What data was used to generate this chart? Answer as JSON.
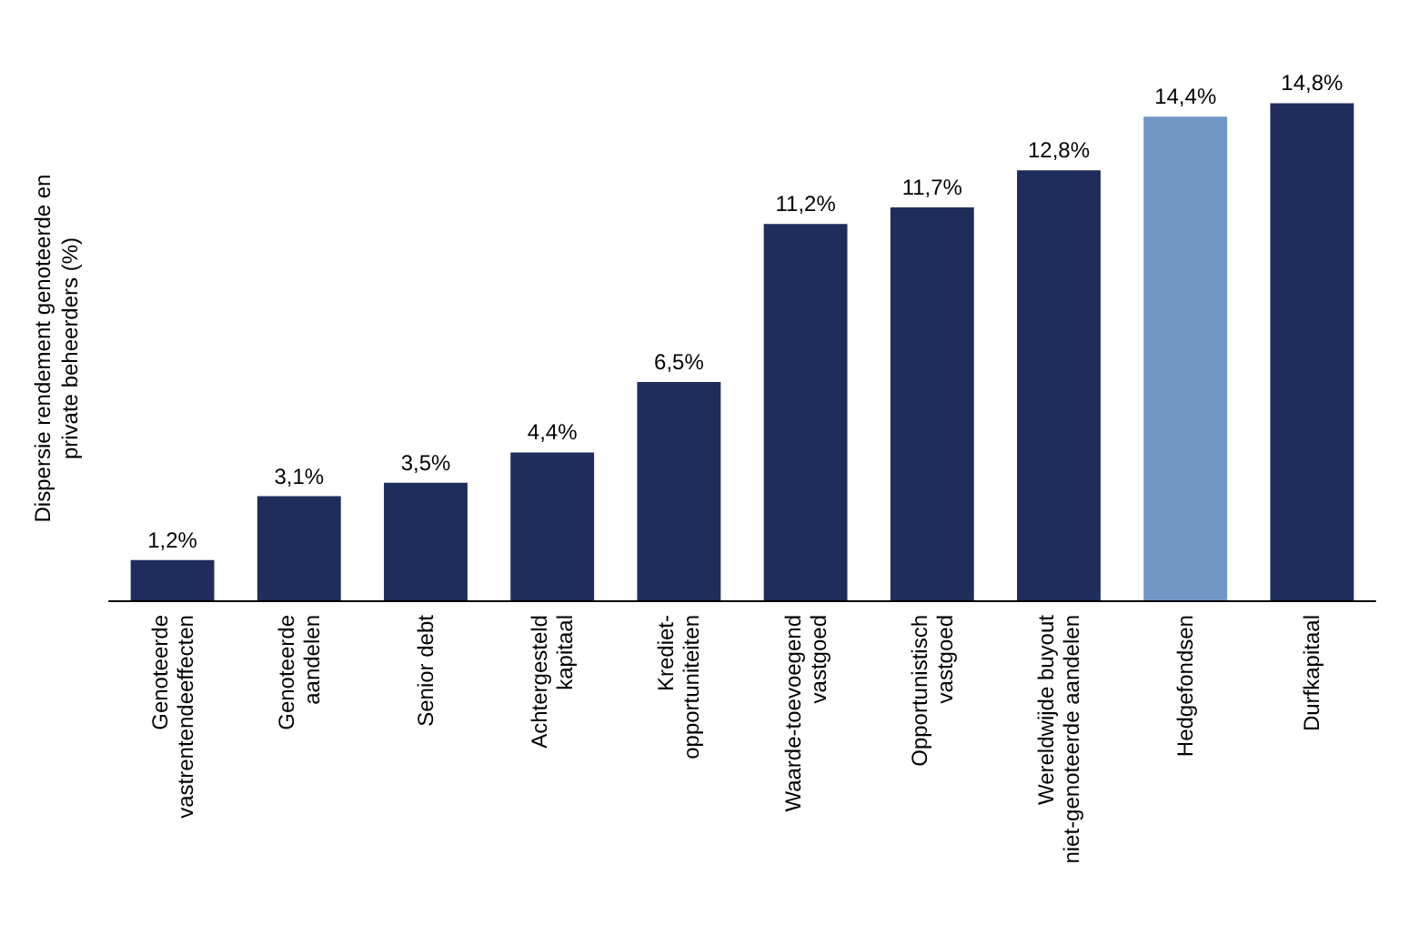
{
  "chart_data": {
    "type": "bar",
    "ylabel": "Dispersie rendement genoteerde en\nprivate beheerders (%)",
    "categories": [
      "Genoteerde\nvastrentendeeffecten",
      "Genoteerde\naandelen",
      "Senior debt",
      "Achtergesteld\nkapitaal",
      "Krediet-\nopportuniteiten",
      "Waarde-toevoegend\nvastgoed",
      "Opportunistisch\nvastgoed",
      "Wereldwijde buyout\nniet-genoteerde aandelen",
      "Hedgefondsen",
      "Durfkapitaal"
    ],
    "values": [
      1.2,
      3.1,
      3.5,
      4.4,
      6.5,
      11.2,
      11.7,
      12.8,
      14.4,
      14.8
    ],
    "value_labels": [
      "1,2%",
      "3,1%",
      "3,5%",
      "4,4%",
      "6,5%",
      "11,2%",
      "11,7%",
      "12,8%",
      "14,4%",
      "14,8%"
    ],
    "colors": [
      "#1f2d5c",
      "#1f2d5c",
      "#1f2d5c",
      "#1f2d5c",
      "#1f2d5c",
      "#1f2d5c",
      "#1f2d5c",
      "#1f2d5c",
      "#7096c4",
      "#1f2d5c"
    ]
  }
}
